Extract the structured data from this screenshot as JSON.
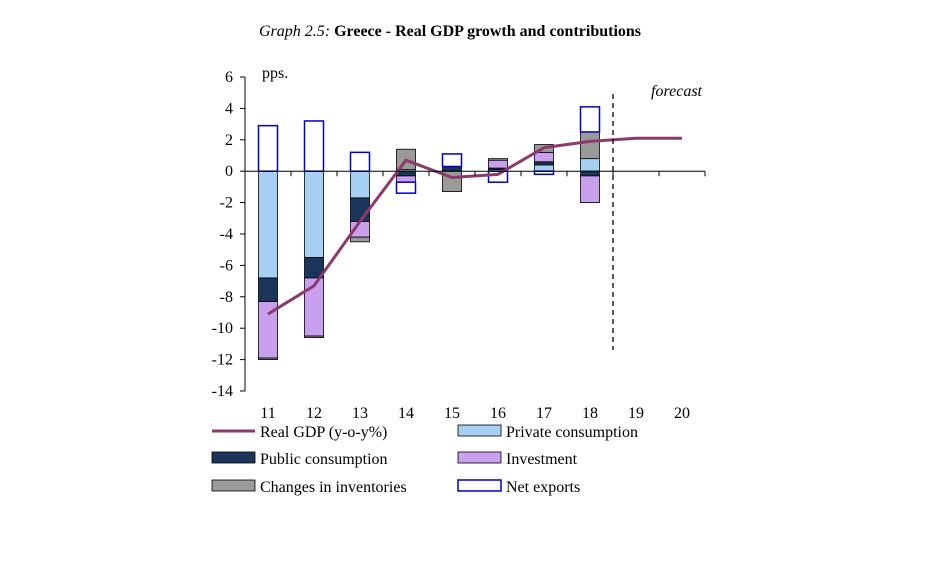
{
  "title": {
    "prefix": "Graph 2.5:",
    "main": "Greece - Real GDP growth and contributions"
  },
  "chart_data": {
    "type": "bar",
    "stacked": true,
    "categories": [
      "11",
      "12",
      "13",
      "14",
      "15",
      "16",
      "17",
      "18",
      "19",
      "20"
    ],
    "ylim": [
      -14,
      6
    ],
    "yticks": [
      6,
      4,
      2,
      0,
      -2,
      -4,
      -6,
      -8,
      -10,
      -12,
      -14
    ],
    "ylabel": "pps.",
    "annotation": "forecast",
    "forecast_after": "18",
    "series": [
      {
        "name": "Private consumption",
        "color": "#a6cff4",
        "values": [
          -6.8,
          -5.5,
          -1.7,
          0.1,
          0.0,
          0.1,
          0.4,
          0.8,
          null,
          null
        ]
      },
      {
        "name": "Public consumption",
        "color": "#1b3459",
        "values": [
          -1.5,
          -1.3,
          -1.5,
          -0.3,
          0.3,
          0.1,
          0.2,
          -0.3,
          null,
          null
        ]
      },
      {
        "name": "Investment",
        "color": "#c9a0ee",
        "values": [
          -3.6,
          -3.7,
          -1.0,
          -0.4,
          0.0,
          0.5,
          0.6,
          -1.7,
          null,
          null
        ]
      },
      {
        "name": "Changes in inventories",
        "color": "#9a9a9a",
        "values": [
          -0.1,
          -0.1,
          -0.3,
          1.3,
          -1.3,
          0.1,
          0.5,
          1.7,
          null,
          null
        ]
      },
      {
        "name": "Net exports",
        "color": "#ffffff",
        "outline": "#0000cc",
        "values": [
          2.9,
          3.2,
          1.2,
          -0.7,
          0.8,
          -0.7,
          -0.2,
          1.6,
          null,
          null
        ]
      }
    ],
    "line": {
      "name": "Real GDP (y-o-y%)",
      "color": "#8b3a6b",
      "values": [
        -9.1,
        -7.3,
        -3.2,
        0.7,
        -0.4,
        -0.2,
        1.5,
        1.9,
        2.1,
        2.1
      ]
    },
    "legend": [
      {
        "label": "Real GDP (y-o-y%)",
        "kind": "line",
        "color": "#8b3a6b"
      },
      {
        "label": "Private consumption",
        "kind": "box",
        "color": "#a6cff4"
      },
      {
        "label": "Public consumption",
        "kind": "box",
        "color": "#1b3459"
      },
      {
        "label": "Investment",
        "kind": "box",
        "color": "#c9a0ee"
      },
      {
        "label": "Changes in inventories",
        "kind": "box",
        "color": "#9a9a9a"
      },
      {
        "label": "Net exports",
        "kind": "box",
        "color": "#ffffff",
        "outline": "#0000cc"
      }
    ]
  }
}
